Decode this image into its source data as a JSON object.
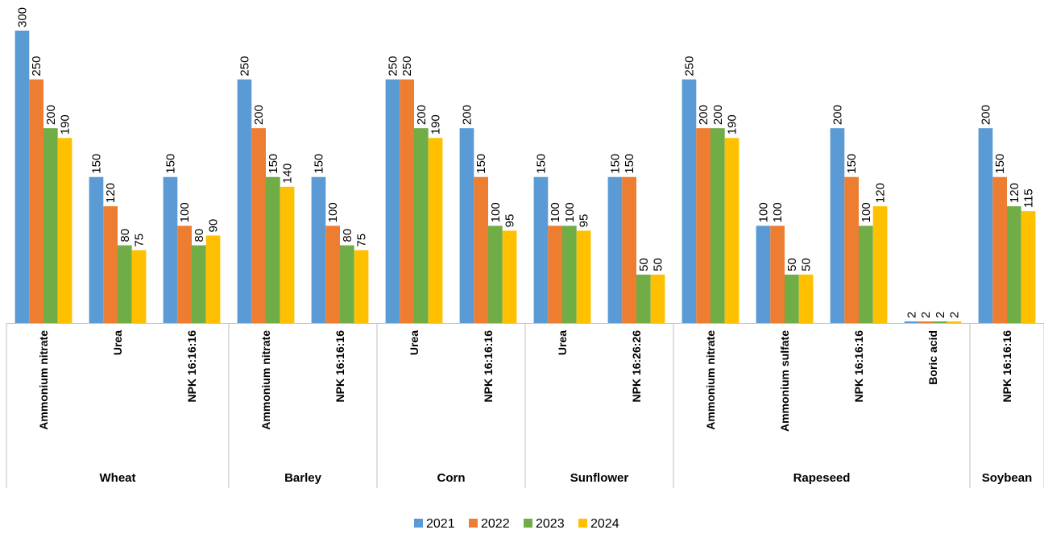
{
  "chart_data": {
    "type": "bar",
    "title": "",
    "xlabel": "",
    "ylabel": "",
    "ylim": [
      0,
      300
    ],
    "grid": false,
    "legend_position": "bottom",
    "groups": [
      {
        "name": "Wheat",
        "categories": [
          "Ammonium nitrate",
          "Urea",
          "NPK 16:16:16"
        ]
      },
      {
        "name": "Barley",
        "categories": [
          "Ammonium nitrate",
          "NPK 16:16:16"
        ]
      },
      {
        "name": "Corn",
        "categories": [
          "Urea",
          "NPK 16:16:16"
        ]
      },
      {
        "name": "Sunflower",
        "categories": [
          "Urea",
          "NPK 16:26:26"
        ]
      },
      {
        "name": "Rapeseed",
        "categories": [
          "Ammonium nitrate",
          "Ammonium sulfate",
          "NPK 16:16:16",
          "Boric acid"
        ]
      },
      {
        "name": "Soybean",
        "categories": [
          "NPK 16:16:16"
        ]
      }
    ],
    "series": [
      {
        "name": "2021",
        "color": "#5b9bd5",
        "values": [
          300,
          150,
          150,
          250,
          150,
          250,
          200,
          150,
          150,
          250,
          100,
          200,
          2,
          200
        ]
      },
      {
        "name": "2022",
        "color": "#ed7d31",
        "values": [
          250,
          120,
          100,
          200,
          100,
          250,
          150,
          100,
          150,
          200,
          100,
          150,
          2,
          150
        ]
      },
      {
        "name": "2023",
        "color": "#70ad47",
        "values": [
          200,
          80,
          80,
          150,
          80,
          200,
          100,
          100,
          50,
          200,
          50,
          100,
          2,
          120
        ]
      },
      {
        "name": "2024",
        "color": "#ffc000",
        "values": [
          190,
          75,
          90,
          140,
          75,
          190,
          95,
          95,
          50,
          190,
          50,
          120,
          2,
          115
        ]
      }
    ]
  }
}
